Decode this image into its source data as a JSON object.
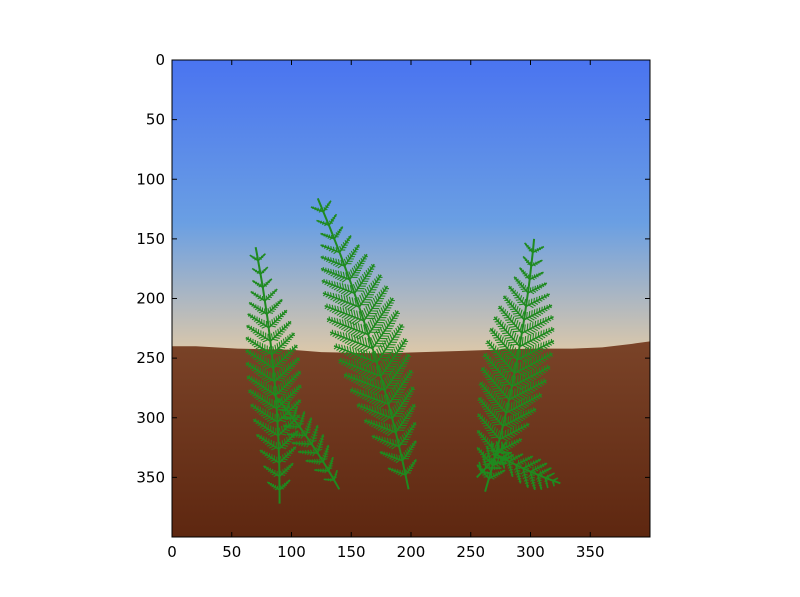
{
  "chart_data": {
    "type": "image",
    "title": "",
    "xlabel": "",
    "ylabel": "",
    "xlim": [
      0,
      400
    ],
    "ylim": [
      400,
      0
    ],
    "y_axis_inverted": true,
    "grid": false,
    "x_ticks": [
      0,
      50,
      100,
      150,
      200,
      250,
      300,
      350
    ],
    "y_ticks": [
      0,
      50,
      100,
      150,
      200,
      250,
      300,
      350
    ],
    "scene": {
      "description_type": "procedural fern rendering",
      "horizon_y": 245,
      "sky_colors": {
        "top": "#4a74f0",
        "mid": "#6a9fe3",
        "horizon": "#dfc9a8"
      },
      "ground_colors": {
        "top": "#7a4328",
        "bottom": "#5e2710"
      },
      "fern_color": "#1f8a1f",
      "ground_profile": [
        [
          0,
          240
        ],
        [
          20,
          240
        ],
        [
          55,
          242
        ],
        [
          100,
          243
        ],
        [
          125,
          245
        ],
        [
          175,
          246
        ],
        [
          240,
          244
        ],
        [
          300,
          242
        ],
        [
          335,
          242
        ],
        [
          360,
          241
        ],
        [
          385,
          238
        ],
        [
          400,
          236
        ]
      ],
      "ferns": [
        {
          "base": [
            90,
            372
          ],
          "tip": [
            70,
            157
          ],
          "leaflet_len": 24,
          "leaflets": 18
        },
        {
          "base": [
            140,
            360
          ],
          "tip": [
            85,
            280
          ],
          "leaflet_len": 14,
          "leaflets": 10
        },
        {
          "base": [
            198,
            360
          ],
          "tip": [
            122,
            116
          ],
          "leaflet_len": 32,
          "leaflets": 20
        },
        {
          "base": [
            255,
            350
          ],
          "tip": [
            280,
            320
          ],
          "leaflet_len": 12,
          "leaflets": 6
        },
        {
          "base": [
            262,
            362
          ],
          "tip": [
            303,
            150
          ],
          "leaflet_len": 30,
          "leaflets": 18
        },
        {
          "base": [
            270,
            330
          ],
          "tip": [
            325,
            355
          ],
          "leaflet_len": 14,
          "leaflets": 8
        }
      ]
    }
  }
}
